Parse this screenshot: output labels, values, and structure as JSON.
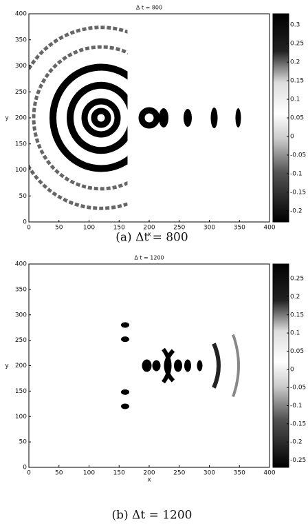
{
  "chart_data": [
    {
      "type": "heatmap",
      "title": "Δ t = 800",
      "xlabel": "x",
      "ylabel": "y",
      "xlim": [
        0,
        400
      ],
      "ylim": [
        0,
        400
      ],
      "xticks": [
        0,
        50,
        100,
        150,
        200,
        250,
        300,
        350,
        400
      ],
      "yticks": [
        0,
        50,
        100,
        150,
        200,
        250,
        300,
        350,
        400
      ],
      "clim": [
        -0.23,
        0.33
      ],
      "cticks": [
        0.3,
        0.25,
        0.2,
        0.15,
        0.1,
        0.05,
        0,
        -0.05,
        -0.1,
        -0.15,
        -0.2
      ],
      "colormap": "gray",
      "caption": "(a)  Δt = 800"
    },
    {
      "type": "heatmap",
      "title": "Δ t = 1200",
      "xlabel": "x",
      "ylabel": "y",
      "xlim": [
        0,
        400
      ],
      "ylim": [
        0,
        400
      ],
      "xticks": [
        0,
        50,
        100,
        150,
        200,
        250,
        300,
        350,
        400
      ],
      "yticks": [
        0,
        50,
        100,
        150,
        200,
        250,
        300,
        350,
        400
      ],
      "clim": [
        -0.27,
        0.29
      ],
      "cticks": [
        0.25,
        0.2,
        0.15,
        0.1,
        0.05,
        0,
        -0.05,
        -0.1,
        -0.15,
        -0.2,
        -0.25
      ],
      "colormap": "gray",
      "caption": "(b)  Δt = 1200"
    }
  ]
}
